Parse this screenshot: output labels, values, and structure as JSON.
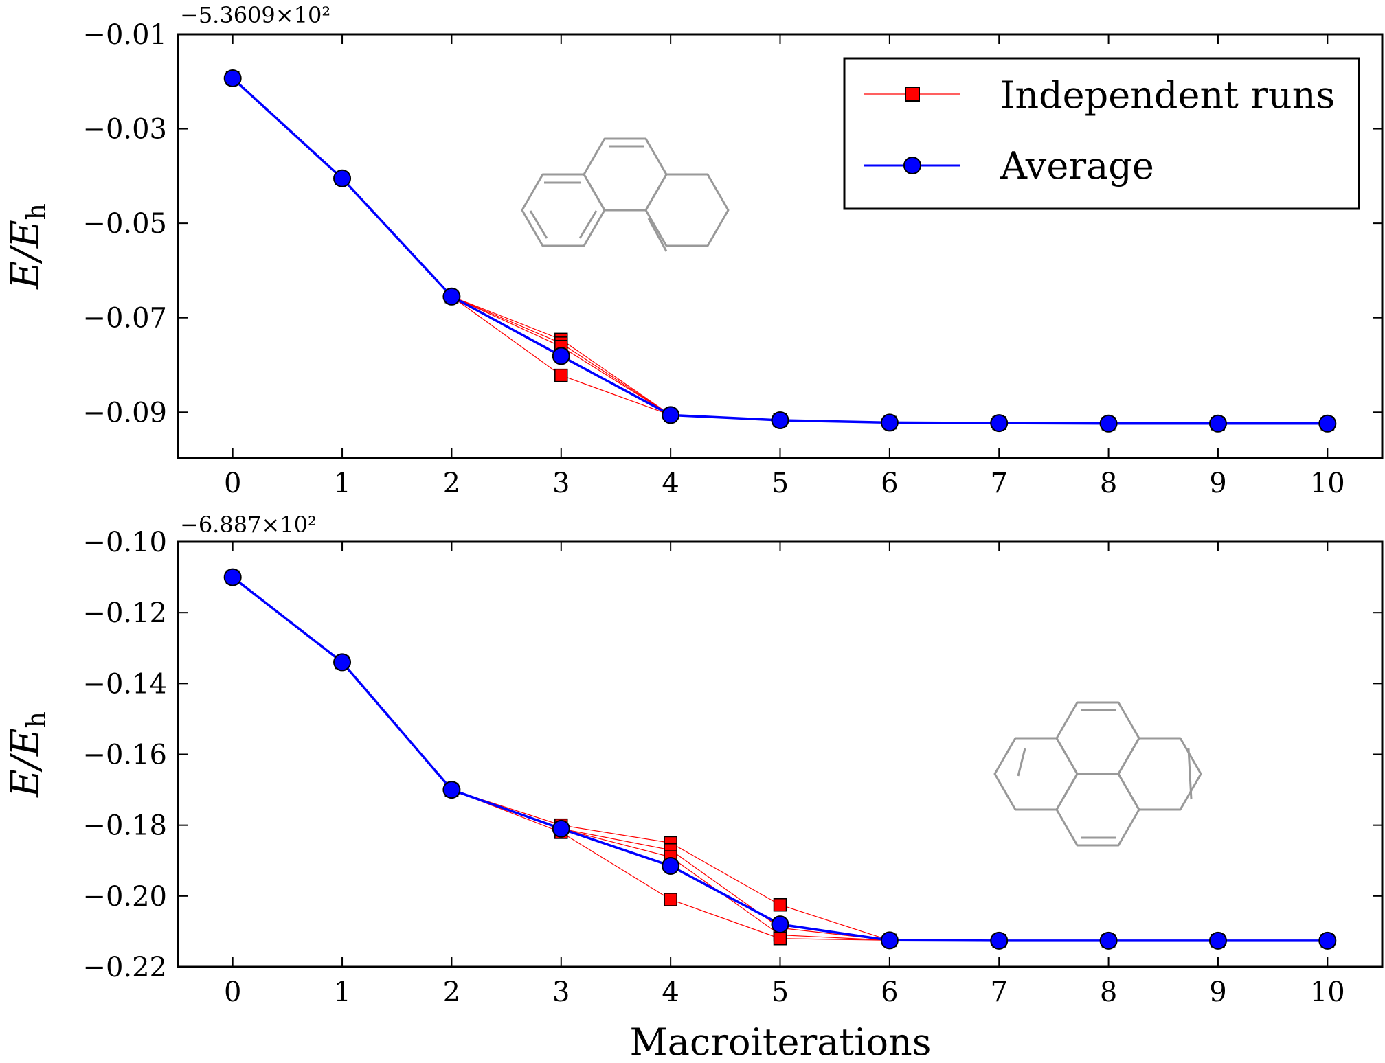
{
  "colors": {
    "runs": "#ff0000",
    "average": "#0000ff",
    "marker_edge": "#000000",
    "molecule": "#999999"
  },
  "legend": {
    "position": "upper-right",
    "entries": [
      {
        "label": "Independent runs",
        "marker": "square",
        "color": "#ff0000"
      },
      {
        "label": "Average",
        "marker": "circle",
        "color": "#0000ff"
      }
    ]
  },
  "xlabel": "Macroiterations",
  "chart_data": [
    {
      "type": "line",
      "name": "top",
      "molecule_icon": "phenanthrene-structure-icon",
      "offset_label": "−5.3609×10²",
      "ylabel": "E/E",
      "ylabel_sub": "h",
      "xlabel": "",
      "xlim": [
        -0.5,
        10.5
      ],
      "ylim": [
        -0.0997,
        -0.01
      ],
      "grid": false,
      "x_ticks": [
        0,
        1,
        2,
        3,
        4,
        5,
        6,
        7,
        8,
        9,
        10
      ],
      "x_tick_labels": [
        "0",
        "1",
        "2",
        "3",
        "4",
        "5",
        "6",
        "7",
        "8",
        "9",
        "10"
      ],
      "y_ticks": [
        -0.01,
        -0.03,
        -0.05,
        -0.07,
        -0.09
      ],
      "y_tick_labels": [
        "−0.01",
        "−0.03",
        "−0.05",
        "−0.07",
        "−0.09"
      ],
      "runs": [
        {
          "x": [
            0,
            1,
            2,
            3,
            4,
            5,
            6,
            7,
            8,
            9,
            10
          ],
          "y": [
            -0.0193,
            -0.0405,
            -0.0655,
            -0.0746,
            -0.0906,
            -0.0917,
            -0.0922,
            -0.0923,
            -0.0924,
            -0.0924,
            -0.0924
          ]
        },
        {
          "x": [
            0,
            1,
            2,
            3,
            4,
            5,
            6,
            7,
            8,
            9,
            10
          ],
          "y": [
            -0.0193,
            -0.0405,
            -0.0655,
            -0.0754,
            -0.0906,
            -0.0917,
            -0.0922,
            -0.0923,
            -0.0924,
            -0.0924,
            -0.0924
          ]
        },
        {
          "x": [
            0,
            1,
            2,
            3,
            4,
            5,
            6,
            7,
            8,
            9,
            10
          ],
          "y": [
            -0.0193,
            -0.0405,
            -0.0655,
            -0.0761,
            -0.0906,
            -0.0917,
            -0.0922,
            -0.0923,
            -0.0924,
            -0.0924,
            -0.0924
          ]
        },
        {
          "x": [
            0,
            1,
            2,
            3,
            4,
            5,
            6,
            7,
            8,
            9,
            10
          ],
          "y": [
            -0.0193,
            -0.0405,
            -0.0655,
            -0.0822,
            -0.0906,
            -0.0917,
            -0.0922,
            -0.0923,
            -0.0924,
            -0.0924,
            -0.0924
          ]
        }
      ],
      "average": {
        "x": [
          0,
          1,
          2,
          3,
          4,
          5,
          6,
          7,
          8,
          9,
          10
        ],
        "y": [
          -0.0193,
          -0.0405,
          -0.0655,
          -0.0781,
          -0.0906,
          -0.0917,
          -0.0922,
          -0.0923,
          -0.0924,
          -0.0924,
          -0.0924
        ]
      }
    },
    {
      "type": "line",
      "name": "bottom",
      "molecule_icon": "triphenylene-structure-icon",
      "offset_label": "−6.887×10²",
      "ylabel": "E/E",
      "ylabel_sub": "h",
      "xlabel": "Macroiterations",
      "xlim": [
        -0.5,
        10.5
      ],
      "ylim": [
        -0.22,
        -0.1
      ],
      "grid": false,
      "x_ticks": [
        0,
        1,
        2,
        3,
        4,
        5,
        6,
        7,
        8,
        9,
        10
      ],
      "x_tick_labels": [
        "0",
        "1",
        "2",
        "3",
        "4",
        "5",
        "6",
        "7",
        "8",
        "9",
        "10"
      ],
      "y_ticks": [
        -0.1,
        -0.12,
        -0.14,
        -0.16,
        -0.18,
        -0.2,
        -0.22
      ],
      "y_tick_labels": [
        "−0.10",
        "−0.12",
        "−0.14",
        "−0.16",
        "−0.18",
        "−0.20",
        "−0.22"
      ],
      "runs": [
        {
          "x": [
            0,
            1,
            2,
            3,
            4,
            5,
            6,
            7,
            8,
            9,
            10
          ],
          "y": [
            -0.11,
            -0.134,
            -0.17,
            -0.18,
            -0.185,
            -0.2025,
            -0.2125,
            -0.2126,
            -0.2126,
            -0.2126,
            -0.2126
          ]
        },
        {
          "x": [
            0,
            1,
            2,
            3,
            4,
            5,
            6,
            7,
            8,
            9,
            10
          ],
          "y": [
            -0.11,
            -0.134,
            -0.17,
            -0.181,
            -0.187,
            -0.209,
            -0.2125,
            -0.2126,
            -0.2126,
            -0.2126,
            -0.2126
          ]
        },
        {
          "x": [
            0,
            1,
            2,
            3,
            4,
            5,
            6,
            7,
            8,
            9,
            10
          ],
          "y": [
            -0.11,
            -0.134,
            -0.17,
            -0.181,
            -0.189,
            -0.211,
            -0.2125,
            -0.2126,
            -0.2126,
            -0.2126,
            -0.2126
          ]
        },
        {
          "x": [
            0,
            1,
            2,
            3,
            4,
            5,
            6,
            7,
            8,
            9,
            10
          ],
          "y": [
            -0.11,
            -0.134,
            -0.17,
            -0.182,
            -0.201,
            -0.212,
            -0.2125,
            -0.2126,
            -0.2126,
            -0.2126,
            -0.2126
          ]
        }
      ],
      "average": {
        "x": [
          0,
          1,
          2,
          3,
          4,
          5,
          6,
          7,
          8,
          9,
          10
        ],
        "y": [
          -0.11,
          -0.134,
          -0.17,
          -0.181,
          -0.1915,
          -0.208,
          -0.2125,
          -0.2126,
          -0.2126,
          -0.2126,
          -0.2126
        ]
      }
    }
  ]
}
